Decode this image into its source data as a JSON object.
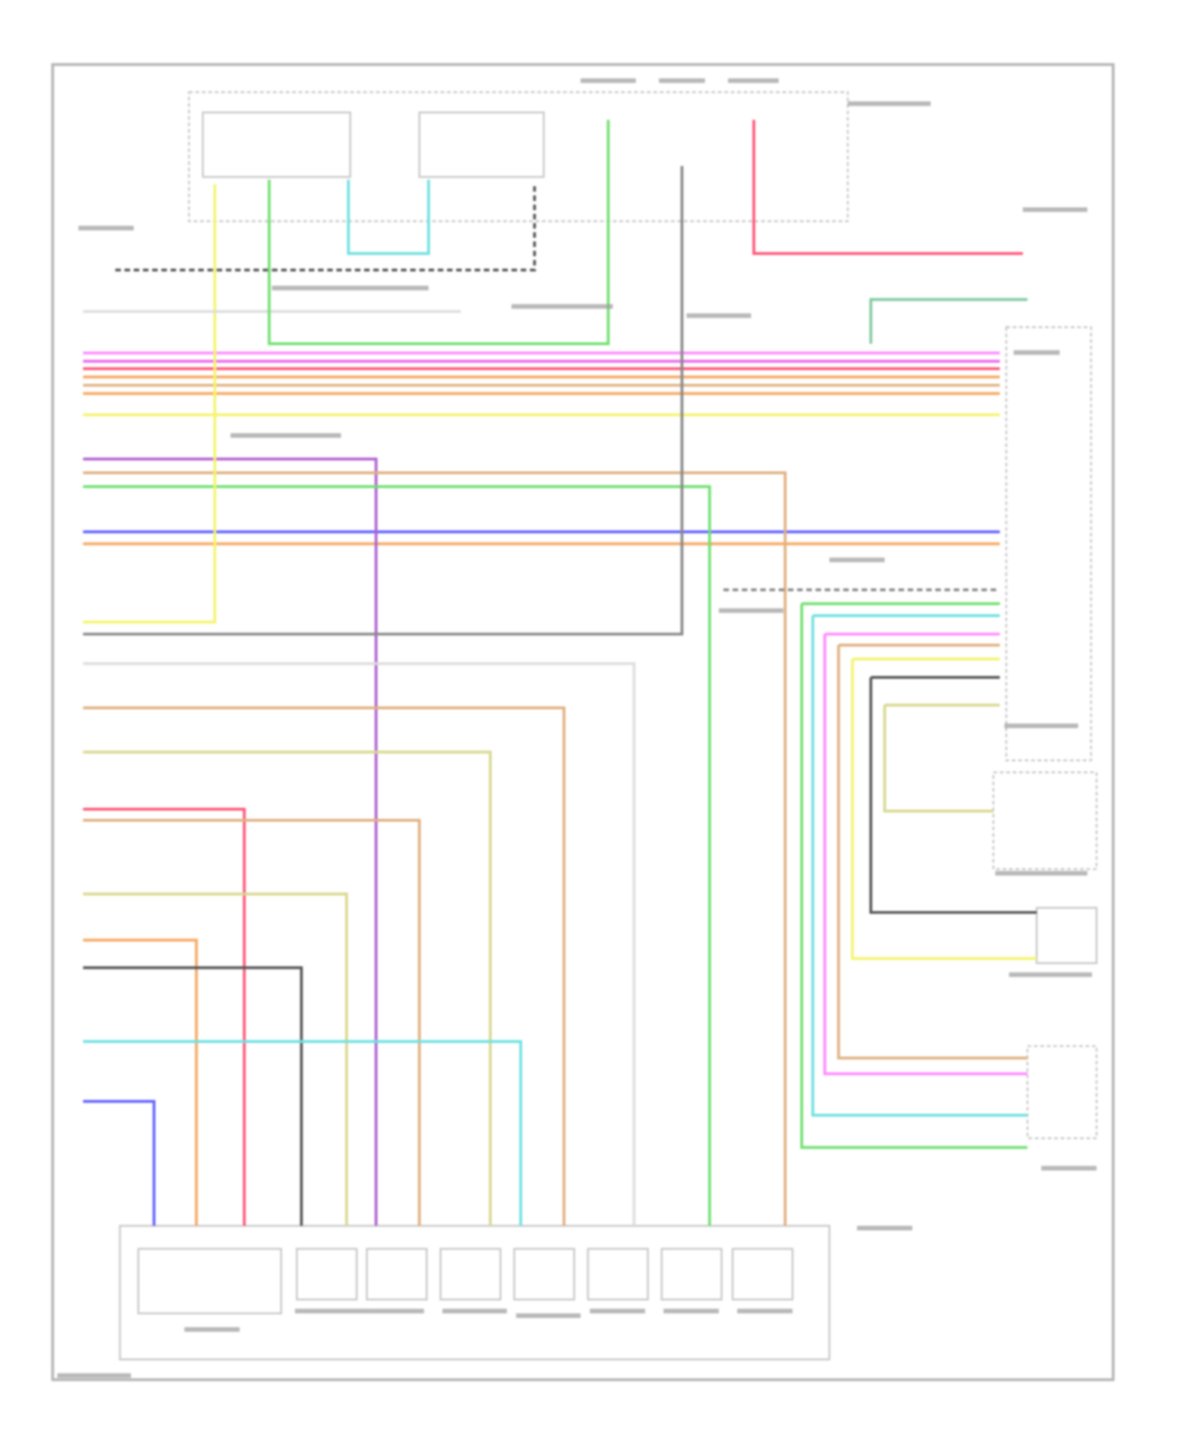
{
  "diagram": {
    "type": "automotive wiring schematic",
    "background": "#ffffff",
    "frame_color": "#b0b0b0",
    "wire_colors": {
      "pink": "#ff88ff",
      "magenta": "#ee66ee",
      "red": "#ff5577",
      "orange": "#f7a860",
      "tan": "#e0b080",
      "yellow": "#f4f470",
      "purple": "#b060d0",
      "green": "#70e070",
      "blue": "#6060ff",
      "cyan": "#70e0e0",
      "grey": "#888888",
      "dark": "#555555",
      "light_grey": "#dddddd",
      "khaki": "#d8d890",
      "teal": "#80c8a0"
    },
    "component_count_bottom": 8
  }
}
